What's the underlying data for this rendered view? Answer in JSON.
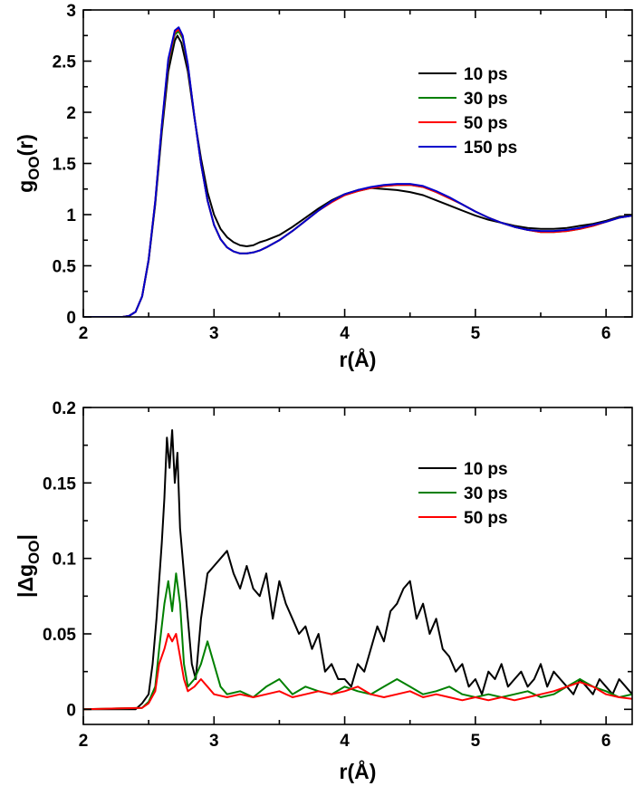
{
  "chart_data": [
    {
      "type": "line",
      "xlabel_main": "r(",
      "xlabel_unit": "Å",
      "xlabel_close": ")",
      "ylabel_main": "g",
      "ylabel_sub": "OO",
      "ylabel_tail": "(r)",
      "xlim": [
        2,
        6.2
      ],
      "ylim": [
        0,
        3
      ],
      "xticks": [
        2,
        3,
        4,
        5,
        6
      ],
      "xtick_labels": [
        "2",
        "3",
        "4",
        "5",
        "6"
      ],
      "yticks": [
        0,
        0.5,
        1,
        1.5,
        2,
        2.5,
        3
      ],
      "ytick_labels": [
        "0",
        "0.5",
        "1",
        "1.5",
        "2",
        "2.5",
        "3"
      ],
      "legend_position": "top-right",
      "series": [
        {
          "name": "10 ps",
          "color": "#000000",
          "x": [
            2.0,
            2.3,
            2.35,
            2.4,
            2.45,
            2.5,
            2.55,
            2.6,
            2.65,
            2.7,
            2.72,
            2.75,
            2.8,
            2.85,
            2.9,
            2.95,
            3.0,
            3.05,
            3.1,
            3.15,
            3.2,
            3.25,
            3.3,
            3.35,
            3.4,
            3.5,
            3.6,
            3.7,
            3.8,
            3.9,
            4.0,
            4.1,
            4.2,
            4.3,
            4.4,
            4.5,
            4.6,
            4.7,
            4.8,
            4.9,
            5.0,
            5.1,
            5.2,
            5.3,
            5.4,
            5.5,
            5.6,
            5.7,
            5.8,
            5.9,
            6.0,
            6.1,
            6.2
          ],
          "y": [
            0,
            0,
            0.01,
            0.05,
            0.2,
            0.55,
            1.1,
            1.8,
            2.4,
            2.7,
            2.75,
            2.68,
            2.4,
            1.95,
            1.55,
            1.22,
            1.0,
            0.86,
            0.78,
            0.73,
            0.7,
            0.69,
            0.7,
            0.73,
            0.75,
            0.8,
            0.88,
            0.97,
            1.06,
            1.14,
            1.2,
            1.24,
            1.26,
            1.25,
            1.24,
            1.22,
            1.19,
            1.14,
            1.09,
            1.04,
            0.99,
            0.95,
            0.92,
            0.89,
            0.87,
            0.86,
            0.86,
            0.87,
            0.89,
            0.91,
            0.94,
            0.98,
            0.99
          ]
        },
        {
          "name": "30 ps",
          "color": "#008000",
          "x": [
            2.0,
            2.3,
            2.35,
            2.4,
            2.45,
            2.5,
            2.55,
            2.6,
            2.65,
            2.7,
            2.73,
            2.76,
            2.8,
            2.85,
            2.9,
            2.95,
            3.0,
            3.05,
            3.1,
            3.15,
            3.2,
            3.25,
            3.3,
            3.35,
            3.4,
            3.5,
            3.6,
            3.7,
            3.8,
            3.9,
            4.0,
            4.1,
            4.2,
            4.3,
            4.4,
            4.5,
            4.6,
            4.7,
            4.8,
            4.9,
            5.0,
            5.1,
            5.2,
            5.3,
            5.4,
            5.5,
            5.6,
            5.7,
            5.8,
            5.9,
            6.0,
            6.1,
            6.2
          ],
          "y": [
            0,
            0,
            0.01,
            0.05,
            0.2,
            0.56,
            1.12,
            1.84,
            2.48,
            2.76,
            2.79,
            2.72,
            2.45,
            1.96,
            1.5,
            1.14,
            0.9,
            0.76,
            0.68,
            0.64,
            0.62,
            0.62,
            0.63,
            0.65,
            0.68,
            0.75,
            0.84,
            0.94,
            1.04,
            1.13,
            1.19,
            1.23,
            1.26,
            1.28,
            1.29,
            1.29,
            1.27,
            1.22,
            1.16,
            1.1,
            1.03,
            0.97,
            0.92,
            0.88,
            0.85,
            0.83,
            0.83,
            0.84,
            0.86,
            0.89,
            0.93,
            0.97,
            0.99
          ]
        },
        {
          "name": "50 ps",
          "color": "#ff0000",
          "x": [
            2.0,
            2.3,
            2.35,
            2.4,
            2.45,
            2.5,
            2.55,
            2.6,
            2.65,
            2.7,
            2.73,
            2.76,
            2.8,
            2.85,
            2.9,
            2.95,
            3.0,
            3.05,
            3.1,
            3.15,
            3.2,
            3.25,
            3.3,
            3.35,
            3.4,
            3.5,
            3.6,
            3.7,
            3.8,
            3.9,
            4.0,
            4.1,
            4.2,
            4.3,
            4.4,
            4.5,
            4.6,
            4.7,
            4.8,
            4.9,
            5.0,
            5.1,
            5.2,
            5.3,
            5.4,
            5.5,
            5.6,
            5.7,
            5.8,
            5.9,
            6.0,
            6.1,
            6.2
          ],
          "y": [
            0,
            0,
            0.01,
            0.05,
            0.2,
            0.56,
            1.13,
            1.86,
            2.5,
            2.78,
            2.81,
            2.74,
            2.46,
            1.96,
            1.5,
            1.14,
            0.9,
            0.76,
            0.68,
            0.64,
            0.62,
            0.62,
            0.63,
            0.65,
            0.68,
            0.75,
            0.84,
            0.94,
            1.04,
            1.12,
            1.19,
            1.23,
            1.26,
            1.28,
            1.29,
            1.29,
            1.27,
            1.22,
            1.16,
            1.1,
            1.03,
            0.97,
            0.92,
            0.88,
            0.85,
            0.83,
            0.83,
            0.84,
            0.86,
            0.89,
            0.93,
            0.97,
            0.99
          ]
        },
        {
          "name": "150 ps",
          "color": "#0000cc",
          "x": [
            2.0,
            2.3,
            2.35,
            2.4,
            2.45,
            2.5,
            2.55,
            2.6,
            2.65,
            2.7,
            2.73,
            2.76,
            2.8,
            2.85,
            2.9,
            2.95,
            3.0,
            3.05,
            3.1,
            3.15,
            3.2,
            3.25,
            3.3,
            3.35,
            3.4,
            3.5,
            3.6,
            3.7,
            3.8,
            3.9,
            4.0,
            4.1,
            4.2,
            4.3,
            4.4,
            4.5,
            4.6,
            4.7,
            4.8,
            4.9,
            5.0,
            5.1,
            5.2,
            5.3,
            5.4,
            5.5,
            5.6,
            5.7,
            5.8,
            5.9,
            6.0,
            6.1,
            6.2
          ],
          "y": [
            0,
            0,
            0.01,
            0.05,
            0.2,
            0.56,
            1.13,
            1.87,
            2.52,
            2.8,
            2.83,
            2.75,
            2.47,
            1.96,
            1.5,
            1.14,
            0.9,
            0.76,
            0.68,
            0.64,
            0.62,
            0.62,
            0.63,
            0.65,
            0.68,
            0.75,
            0.84,
            0.94,
            1.04,
            1.13,
            1.2,
            1.24,
            1.27,
            1.29,
            1.3,
            1.3,
            1.28,
            1.23,
            1.17,
            1.1,
            1.03,
            0.97,
            0.92,
            0.88,
            0.85,
            0.84,
            0.84,
            0.85,
            0.87,
            0.9,
            0.93,
            0.97,
            0.99
          ]
        }
      ]
    },
    {
      "type": "line",
      "xlabel_main": "r(",
      "xlabel_unit": "Å",
      "xlabel_close": ")",
      "ylabel_main": "|Δg",
      "ylabel_sub": "OO",
      "ylabel_tail": "|",
      "xlim": [
        2,
        6.2
      ],
      "ylim": [
        -0.01,
        0.2
      ],
      "xticks": [
        2,
        3,
        4,
        5,
        6
      ],
      "xtick_labels": [
        "2",
        "3",
        "4",
        "5",
        "6"
      ],
      "yticks": [
        0,
        0.05,
        0.1,
        0.15,
        0.2
      ],
      "ytick_labels": [
        "0",
        "0.05",
        "0.1",
        "0.15",
        "0.2"
      ],
      "legend_position": "top-right",
      "series": [
        {
          "name": "10 ps",
          "color": "#000000",
          "x": [
            2.0,
            2.4,
            2.45,
            2.5,
            2.53,
            2.56,
            2.6,
            2.62,
            2.64,
            2.66,
            2.68,
            2.7,
            2.72,
            2.74,
            2.77,
            2.8,
            2.83,
            2.86,
            2.9,
            2.95,
            3.0,
            3.05,
            3.1,
            3.15,
            3.2,
            3.25,
            3.3,
            3.35,
            3.4,
            3.45,
            3.5,
            3.55,
            3.6,
            3.65,
            3.7,
            3.75,
            3.8,
            3.85,
            3.9,
            3.95,
            4.0,
            4.05,
            4.1,
            4.15,
            4.2,
            4.25,
            4.3,
            4.35,
            4.4,
            4.45,
            4.5,
            4.55,
            4.6,
            4.65,
            4.7,
            4.75,
            4.8,
            4.85,
            4.9,
            4.95,
            5.0,
            5.05,
            5.1,
            5.15,
            5.2,
            5.25,
            5.3,
            5.35,
            5.4,
            5.45,
            5.5,
            5.55,
            5.6,
            5.65,
            5.7,
            5.75,
            5.8,
            5.85,
            5.9,
            5.95,
            6.0,
            6.05,
            6.1,
            6.15,
            6.2
          ],
          "y": [
            0,
            0,
            0.004,
            0.01,
            0.03,
            0.06,
            0.11,
            0.14,
            0.18,
            0.16,
            0.185,
            0.15,
            0.17,
            0.12,
            0.09,
            0.06,
            0.03,
            0.02,
            0.06,
            0.09,
            0.095,
            0.1,
            0.105,
            0.09,
            0.08,
            0.095,
            0.08,
            0.075,
            0.09,
            0.06,
            0.085,
            0.07,
            0.06,
            0.05,
            0.055,
            0.04,
            0.05,
            0.025,
            0.03,
            0.02,
            0.02,
            0.015,
            0.03,
            0.025,
            0.04,
            0.055,
            0.045,
            0.065,
            0.07,
            0.08,
            0.085,
            0.06,
            0.07,
            0.05,
            0.06,
            0.04,
            0.035,
            0.025,
            0.03,
            0.015,
            0.02,
            0.01,
            0.025,
            0.02,
            0.03,
            0.015,
            0.02,
            0.025,
            0.015,
            0.02,
            0.03,
            0.015,
            0.025,
            0.02,
            0.015,
            0.01,
            0.02,
            0.015,
            0.01,
            0.02,
            0.015,
            0.01,
            0.02,
            0.015,
            0.01
          ]
        },
        {
          "name": "30 ps",
          "color": "#008000",
          "x": [
            2.0,
            2.45,
            2.5,
            2.55,
            2.58,
            2.62,
            2.65,
            2.68,
            2.71,
            2.74,
            2.77,
            2.8,
            2.85,
            2.9,
            2.95,
            3.0,
            3.05,
            3.1,
            3.2,
            3.3,
            3.4,
            3.5,
            3.6,
            3.7,
            3.8,
            3.9,
            4.0,
            4.1,
            4.2,
            4.3,
            4.4,
            4.5,
            4.6,
            4.7,
            4.8,
            4.9,
            5.0,
            5.1,
            5.2,
            5.3,
            5.4,
            5.5,
            5.6,
            5.7,
            5.8,
            5.9,
            6.0,
            6.1,
            6.2
          ],
          "y": [
            0,
            0.001,
            0.005,
            0.015,
            0.04,
            0.07,
            0.085,
            0.065,
            0.09,
            0.07,
            0.03,
            0.015,
            0.02,
            0.03,
            0.045,
            0.03,
            0.015,
            0.01,
            0.012,
            0.008,
            0.015,
            0.02,
            0.01,
            0.015,
            0.012,
            0.01,
            0.015,
            0.012,
            0.01,
            0.015,
            0.02,
            0.015,
            0.01,
            0.012,
            0.015,
            0.01,
            0.008,
            0.01,
            0.008,
            0.01,
            0.012,
            0.008,
            0.01,
            0.015,
            0.02,
            0.015,
            0.012,
            0.008,
            0.01
          ]
        },
        {
          "name": "50 ps",
          "color": "#ff0000",
          "x": [
            2.0,
            2.45,
            2.5,
            2.55,
            2.58,
            2.62,
            2.65,
            2.68,
            2.71,
            2.74,
            2.77,
            2.8,
            2.85,
            2.9,
            2.95,
            3.0,
            3.1,
            3.2,
            3.3,
            3.4,
            3.5,
            3.6,
            3.7,
            3.8,
            3.9,
            4.0,
            4.1,
            4.2,
            4.3,
            4.4,
            4.5,
            4.6,
            4.7,
            4.8,
            4.9,
            5.0,
            5.1,
            5.2,
            5.3,
            5.4,
            5.5,
            5.6,
            5.7,
            5.8,
            5.9,
            6.0,
            6.1,
            6.2
          ],
          "y": [
            0,
            0.001,
            0.004,
            0.012,
            0.03,
            0.04,
            0.05,
            0.045,
            0.05,
            0.035,
            0.02,
            0.012,
            0.015,
            0.02,
            0.015,
            0.01,
            0.008,
            0.01,
            0.008,
            0.01,
            0.012,
            0.008,
            0.01,
            0.012,
            0.01,
            0.012,
            0.015,
            0.01,
            0.008,
            0.01,
            0.012,
            0.008,
            0.01,
            0.008,
            0.006,
            0.008,
            0.006,
            0.008,
            0.006,
            0.008,
            0.01,
            0.012,
            0.015,
            0.018,
            0.015,
            0.01,
            0.008,
            0.007
          ]
        }
      ]
    }
  ]
}
